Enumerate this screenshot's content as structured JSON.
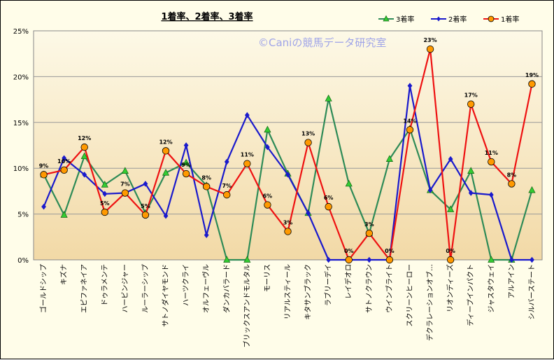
{
  "chart_data": {
    "type": "line",
    "title": "1着率、2着率、3着率",
    "watermark": "©Caniの競馬データ研究室",
    "ylim": [
      0,
      25
    ],
    "yticks": [
      "0%",
      "5%",
      "10%",
      "15%",
      "20%",
      "25%"
    ],
    "grid": "horizontal",
    "legend_position": "top-right",
    "categories": [
      "ゴールドシップ",
      "キズナ",
      "エピファネイア",
      "ドゥラメンテ",
      "ハービンジャー",
      "ルーラーシップ",
      "サトノダイヤモンド",
      "ハーツクライ",
      "オルフェーヴル",
      "ダンカバラード",
      "ブリックスアンドモルタル",
      "モーリス",
      "リアルスティール",
      "キタサンブラック",
      "ラブリーデイ",
      "レイデオロ",
      "サトノクラウン",
      "ウインブライト",
      "スクリーンヒーロー",
      "デクラレーションオブ…",
      "リオンディーズ",
      "ディープインパクト",
      "ジャスタウェイ",
      "アルアイン",
      "シルバーステート"
    ],
    "series": [
      {
        "name": "3着率",
        "color": "#2e8b57",
        "marker": "triangle",
        "marker_fill": "#33cc33",
        "values": [
          9.3,
          4.9,
          11.3,
          8.2,
          9.7,
          5.1,
          9.5,
          10.6,
          8.1,
          0,
          0,
          14.2,
          9.4,
          5.1,
          17.6,
          8.3,
          2.9,
          11.0,
          14.3,
          7.6,
          5.5,
          9.7,
          0,
          0,
          7.6
        ]
      },
      {
        "name": "2着率",
        "color": "#1a1acc",
        "marker": "diamond",
        "marker_fill": "#1a1acc",
        "values": [
          5.8,
          11.1,
          9.3,
          7.2,
          7.3,
          8.3,
          4.8,
          12.5,
          2.7,
          10.7,
          15.8,
          12.3,
          9.3,
          5.1,
          0,
          0,
          0,
          0,
          19.0,
          7.6,
          11.0,
          7.3,
          7.1,
          0,
          0
        ]
      },
      {
        "name": "1着率",
        "color": "#ee1111",
        "marker": "circle",
        "marker_fill": "#ff9900",
        "values": [
          9.3,
          9.8,
          12.3,
          5.2,
          7.3,
          4.9,
          11.9,
          9.4,
          8.0,
          7.1,
          10.5,
          6.0,
          3.1,
          12.8,
          5.8,
          0,
          2.9,
          0,
          14.2,
          23.0,
          0,
          17.0,
          10.7,
          8.3,
          19.2
        ]
      }
    ],
    "data_labels": [
      "9%",
      "10%",
      "12%",
      "5%",
      "7%",
      "5%",
      "12%",
      "9%",
      "8%",
      "7%",
      "11%",
      "6%",
      "3%",
      "13%",
      "6%",
      "0%",
      "3%",
      "0%",
      "14%",
      "23%",
      "0%",
      "17%",
      "11%",
      "8%",
      "19%"
    ]
  }
}
